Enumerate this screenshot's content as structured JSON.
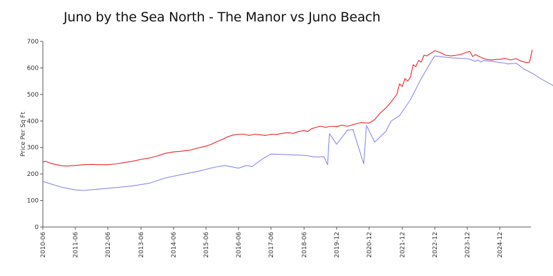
{
  "chart_data": {
    "type": "line",
    "title": "Juno by the Sea North - The Manor vs Juno Beach",
    "xlabel": "",
    "ylabel": "Price Per Sq Ft",
    "ylim": [
      0,
      700
    ],
    "xlim": [
      "2010-06",
      "2025-12"
    ],
    "yticks": [
      0,
      100,
      200,
      300,
      400,
      500,
      600,
      700
    ],
    "xticks": [
      "2010-06",
      "2011-06",
      "2012-06",
      "2013-06",
      "2014-06",
      "2015-06",
      "2016-06",
      "2017-06",
      "2018-06",
      "2019-12",
      "2020-12",
      "2021-12",
      "2022-12",
      "2023-12",
      "2024-12"
    ],
    "grid": false,
    "legend": "none",
    "series": [
      {
        "color": "#ee2222",
        "points": [
          [
            "2010-06",
            245
          ],
          [
            "2010-07",
            248
          ],
          [
            "2010-09",
            240
          ],
          [
            "2010-11",
            235
          ],
          [
            "2011-01",
            231
          ],
          [
            "2011-03",
            230
          ],
          [
            "2011-06",
            232
          ],
          [
            "2011-09",
            235
          ],
          [
            "2011-12",
            236
          ],
          [
            "2012-03",
            235
          ],
          [
            "2012-06",
            235
          ],
          [
            "2012-09",
            238
          ],
          [
            "2012-12",
            243
          ],
          [
            "2013-03",
            248
          ],
          [
            "2013-06",
            255
          ],
          [
            "2013-09",
            260
          ],
          [
            "2013-12",
            268
          ],
          [
            "2014-03",
            278
          ],
          [
            "2014-06",
            283
          ],
          [
            "2014-09",
            286
          ],
          [
            "2014-12",
            290
          ],
          [
            "2015-03",
            298
          ],
          [
            "2015-06",
            305
          ],
          [
            "2015-08",
            312
          ],
          [
            "2015-10",
            322
          ],
          [
            "2015-12",
            330
          ],
          [
            "2016-02",
            340
          ],
          [
            "2016-04",
            347
          ],
          [
            "2016-06",
            350
          ],
          [
            "2016-08",
            350
          ],
          [
            "2016-10",
            345
          ],
          [
            "2016-12",
            350
          ],
          [
            "2017-02",
            348
          ],
          [
            "2017-04",
            345
          ],
          [
            "2017-06",
            350
          ],
          [
            "2017-08",
            349
          ],
          [
            "2017-10",
            353
          ],
          [
            "2017-12",
            356
          ],
          [
            "2018-02",
            353
          ],
          [
            "2018-04",
            360
          ],
          [
            "2018-06",
            364
          ],
          [
            "2018-08",
            360
          ],
          [
            "2018-10",
            370
          ],
          [
            "2018-12",
            375
          ],
          [
            "2019-03",
            380
          ],
          [
            "2019-06",
            376
          ],
          [
            "2019-09",
            380
          ],
          [
            "2019-12",
            378
          ],
          [
            "2020-02",
            384
          ],
          [
            "2020-04",
            380
          ],
          [
            "2020-06",
            386
          ],
          [
            "2020-09",
            394
          ],
          [
            "2020-12",
            392
          ],
          [
            "2021-02",
            405
          ],
          [
            "2021-04",
            430
          ],
          [
            "2021-06",
            448
          ],
          [
            "2021-08",
            472
          ],
          [
            "2021-10",
            500
          ],
          [
            "2021-11",
            540
          ],
          [
            "2021-12",
            530
          ],
          [
            "2022-01",
            560
          ],
          [
            "2022-02",
            550
          ],
          [
            "2022-03",
            565
          ],
          [
            "2022-04",
            612
          ],
          [
            "2022-05",
            605
          ],
          [
            "2022-06",
            628
          ],
          [
            "2022-07",
            622
          ],
          [
            "2022-08",
            648
          ],
          [
            "2022-09",
            645
          ],
          [
            "2022-10",
            652
          ],
          [
            "2022-11",
            658
          ],
          [
            "2022-12",
            665
          ],
          [
            "2023-02",
            658
          ],
          [
            "2023-04",
            648
          ],
          [
            "2023-06",
            645
          ],
          [
            "2023-08",
            648
          ],
          [
            "2023-10",
            652
          ],
          [
            "2023-12",
            660
          ],
          [
            "2024-01",
            662
          ],
          [
            "2024-02",
            643
          ],
          [
            "2024-03",
            650
          ],
          [
            "2024-05",
            640
          ],
          [
            "2024-07",
            632
          ],
          [
            "2024-09",
            630
          ],
          [
            "2024-11",
            632
          ],
          [
            "2024-12",
            632
          ],
          [
            "2025-02",
            636
          ],
          [
            "2025-04",
            630
          ],
          [
            "2025-06",
            635
          ],
          [
            "2025-08",
            625
          ],
          [
            "2025-10",
            620
          ],
          [
            "2025-11",
            622
          ],
          [
            "2025-12",
            668
          ]
        ]
      },
      {
        "color": "#8888ee",
        "points": [
          [
            "2010-06",
            172
          ],
          [
            "2010-09",
            162
          ],
          [
            "2011-01",
            150
          ],
          [
            "2011-06",
            140
          ],
          [
            "2011-09",
            138
          ],
          [
            "2012-06",
            146
          ],
          [
            "2013-03",
            155
          ],
          [
            "2013-09",
            165
          ],
          [
            "2014-03",
            185
          ],
          [
            "2014-09",
            198
          ],
          [
            "2015-03",
            210
          ],
          [
            "2015-09",
            225
          ],
          [
            "2016-01",
            232
          ],
          [
            "2016-06",
            222
          ],
          [
            "2016-09",
            232
          ],
          [
            "2016-11",
            228
          ],
          [
            "2017-03",
            258
          ],
          [
            "2017-06",
            275
          ],
          [
            "2017-09",
            274
          ],
          [
            "2018-06",
            270
          ],
          [
            "2018-09",
            268
          ],
          [
            "2018-11",
            265
          ],
          [
            "2019-02",
            264
          ],
          [
            "2019-05",
            265
          ],
          [
            "2019-07",
            235
          ],
          [
            "2019-08",
            352
          ],
          [
            "2019-12",
            312
          ],
          [
            "2020-04",
            365
          ],
          [
            "2020-06",
            368
          ],
          [
            "2020-10",
            238
          ],
          [
            "2020-11",
            383
          ],
          [
            "2021-02",
            320
          ],
          [
            "2021-06",
            360
          ],
          [
            "2021-08",
            400
          ],
          [
            "2021-11",
            420
          ],
          [
            "2022-03",
            480
          ],
          [
            "2022-07",
            560
          ],
          [
            "2022-11",
            630
          ],
          [
            "2022-12",
            645
          ],
          [
            "2023-06",
            638
          ],
          [
            "2023-12",
            635
          ],
          [
            "2024-01",
            632
          ],
          [
            "2024-03",
            625
          ],
          [
            "2024-04",
            630
          ],
          [
            "2024-05",
            622
          ],
          [
            "2024-06",
            628
          ],
          [
            "2024-09",
            625
          ],
          [
            "2024-12",
            620
          ],
          [
            "2025-02",
            618
          ],
          [
            "2025-03",
            615
          ],
          [
            "2025-06",
            618
          ],
          [
            "2025-07",
            611
          ],
          [
            "2025-09",
            595
          ],
          [
            "2025-12",
            580
          ],
          [
            "2026-03",
            560
          ],
          [
            "2026-06",
            543
          ],
          [
            "2026-09",
            526
          ]
        ]
      }
    ]
  }
}
